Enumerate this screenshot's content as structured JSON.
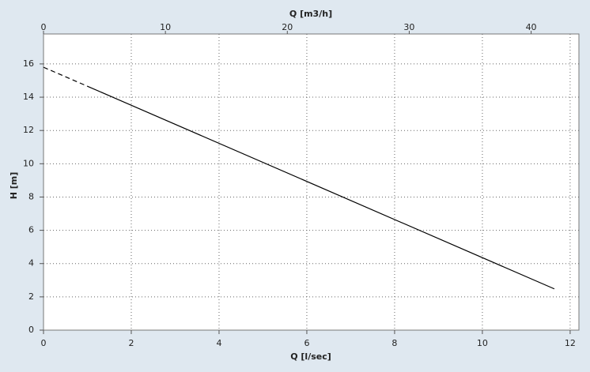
{
  "chart_data": {
    "type": "line",
    "xlabel": "Q [l/sec]",
    "x2label": "Q [m3/h]",
    "ylabel": "H [m]",
    "xlim": [
      0,
      12.2
    ],
    "xticks": [
      0,
      2,
      4,
      6,
      8,
      10,
      12
    ],
    "x2lim": [
      0,
      43.92
    ],
    "x2ticks": [
      0,
      10,
      20,
      30,
      40
    ],
    "ylim": [
      0,
      17.8
    ],
    "yticks": [
      0,
      2,
      4,
      6,
      8,
      10,
      12,
      14,
      16
    ],
    "grid": true,
    "series": [
      {
        "color": "#000000",
        "style": "dashed",
        "x": [
          0,
          1
        ],
        "values": [
          15.8,
          14.66
        ]
      },
      {
        "color": "#000000",
        "style": "solid",
        "x": [
          1,
          11.64
        ],
        "values": [
          14.66,
          2.48
        ]
      }
    ]
  }
}
